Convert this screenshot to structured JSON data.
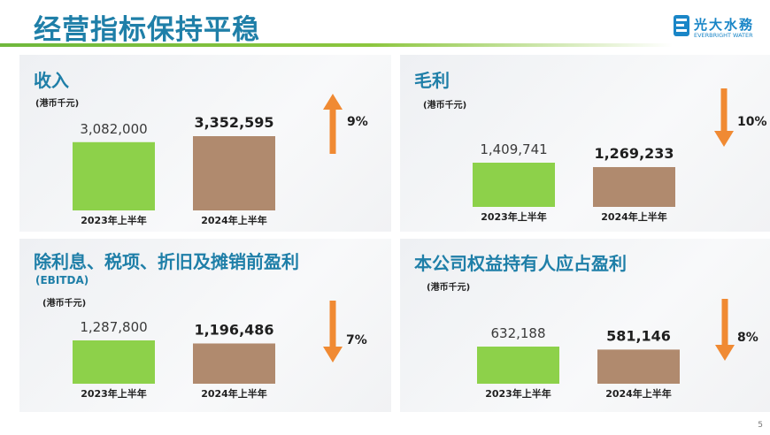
{
  "header": {
    "title": "经营指标保持平稳",
    "logo_cn": "光大水務",
    "logo_en": "EVERBRIGHT WATER"
  },
  "page_number": "5",
  "colors": {
    "title": "#1f7fa8",
    "bar_2023": "#8dd14a",
    "bar_2024": "#b08a6e",
    "arrow": "#f08a33"
  },
  "panels": [
    {
      "title": "收入",
      "subtitle": "",
      "unit": "(港币千元)"
    },
    {
      "title": "毛利",
      "subtitle": "",
      "unit": "(港币千元)"
    },
    {
      "title": "除利息、税项、折旧及摊销前盈利",
      "subtitle": "(EBITDA)",
      "unit": "(港币千元)"
    },
    {
      "title": "本公司权益持有人应占盈利",
      "subtitle": "",
      "unit": "(港币千元)"
    }
  ],
  "chart_data": [
    {
      "type": "bar",
      "categories": [
        "2023年上半年",
        "2024年上半年"
      ],
      "values": [
        3082000,
        3352595
      ],
      "value_labels": [
        "3,082,000",
        "3,352,595"
      ],
      "change": {
        "direction": "up",
        "label": "9%"
      }
    },
    {
      "type": "bar",
      "categories": [
        "2023年上半年",
        "2024年上半年"
      ],
      "values": [
        1409741,
        1269233
      ],
      "value_labels": [
        "1,409,741",
        "1,269,233"
      ],
      "change": {
        "direction": "down",
        "label": "10%"
      }
    },
    {
      "type": "bar",
      "categories": [
        "2023年上半年",
        "2024年上半年"
      ],
      "values": [
        1287800,
        1196486
      ],
      "value_labels": [
        "1,287,800",
        "1,196,486"
      ],
      "change": {
        "direction": "down",
        "label": "7%"
      }
    },
    {
      "type": "bar",
      "categories": [
        "2023年上半年",
        "2024年上半年"
      ],
      "values": [
        632188,
        581146
      ],
      "value_labels": [
        "632,188",
        "581,146"
      ],
      "change": {
        "direction": "down",
        "label": "8%"
      }
    }
  ]
}
